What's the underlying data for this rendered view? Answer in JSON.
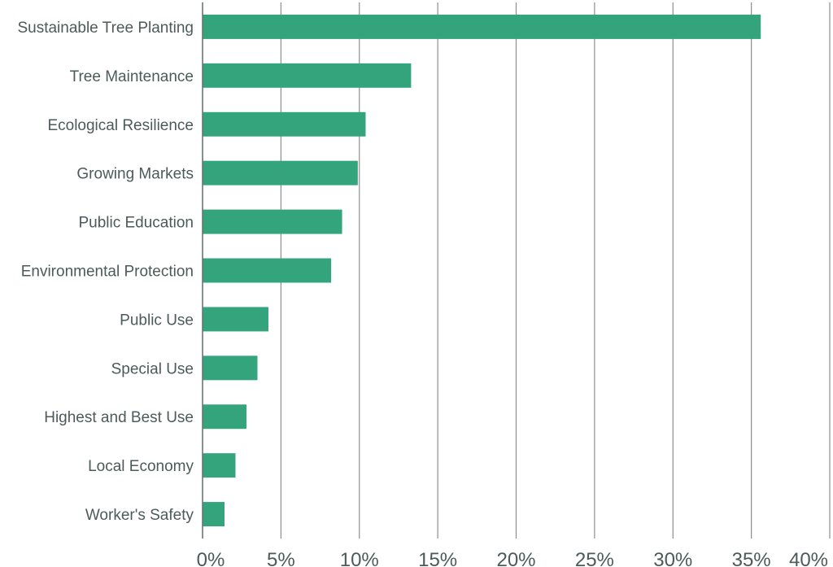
{
  "chart_data": {
    "type": "bar",
    "orientation": "horizontal",
    "categories": [
      "Sustainable Tree Planting",
      "Tree Maintenance",
      "Ecological Resilience",
      "Growing Markets",
      "Public Education",
      "Environmental Protection",
      "Public Use",
      "Special Use",
      "Highest and Best Use",
      "Local Economy",
      "Worker's Safety"
    ],
    "values": [
      35.6,
      13.3,
      10.4,
      9.9,
      8.9,
      8.2,
      4.2,
      3.5,
      2.8,
      2.1,
      1.4
    ],
    "xlim": [
      0,
      40
    ],
    "xticks": [
      "0%",
      "5%",
      "10%",
      "15%",
      "20%",
      "25%",
      "30%",
      "35%",
      "40%"
    ],
    "title": "",
    "xlabel": "",
    "ylabel": "",
    "grid": "vertical",
    "bar_color": "#34a47c"
  }
}
